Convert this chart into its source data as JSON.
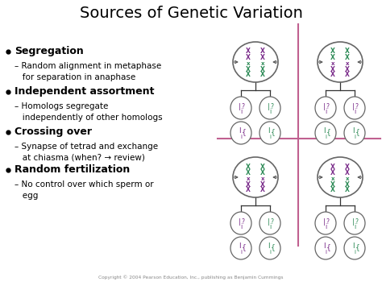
{
  "title": "Sources of Genetic Variation",
  "title_fontsize": 14,
  "bg_color": "#ffffff",
  "text_color": "#000000",
  "bullet_items": [
    {
      "bullet": "Segregation",
      "sub": "– Random alignment in metaphase\n   for separation in anaphase"
    },
    {
      "bullet": "Independent assortment",
      "sub": "– Homologs segregate\n   independently of other homologs"
    },
    {
      "bullet": "Crossing over",
      "sub": "– Synapse of tetrad and exchange\n   at chiasma (when? → review)"
    },
    {
      "bullet": "Random fertilization",
      "sub": "– No control over which sperm or\n   egg"
    }
  ],
  "purple": "#7B2D8B",
  "green": "#2E8B57",
  "divider_color": "#C06090",
  "copyright": "Copyright © 2004 Pearson Education, Inc., publishing as Benjamin Cummings",
  "bullet_fontsize": 9,
  "sub_fontsize": 7.5,
  "bullet_bold_fontsize": 9
}
